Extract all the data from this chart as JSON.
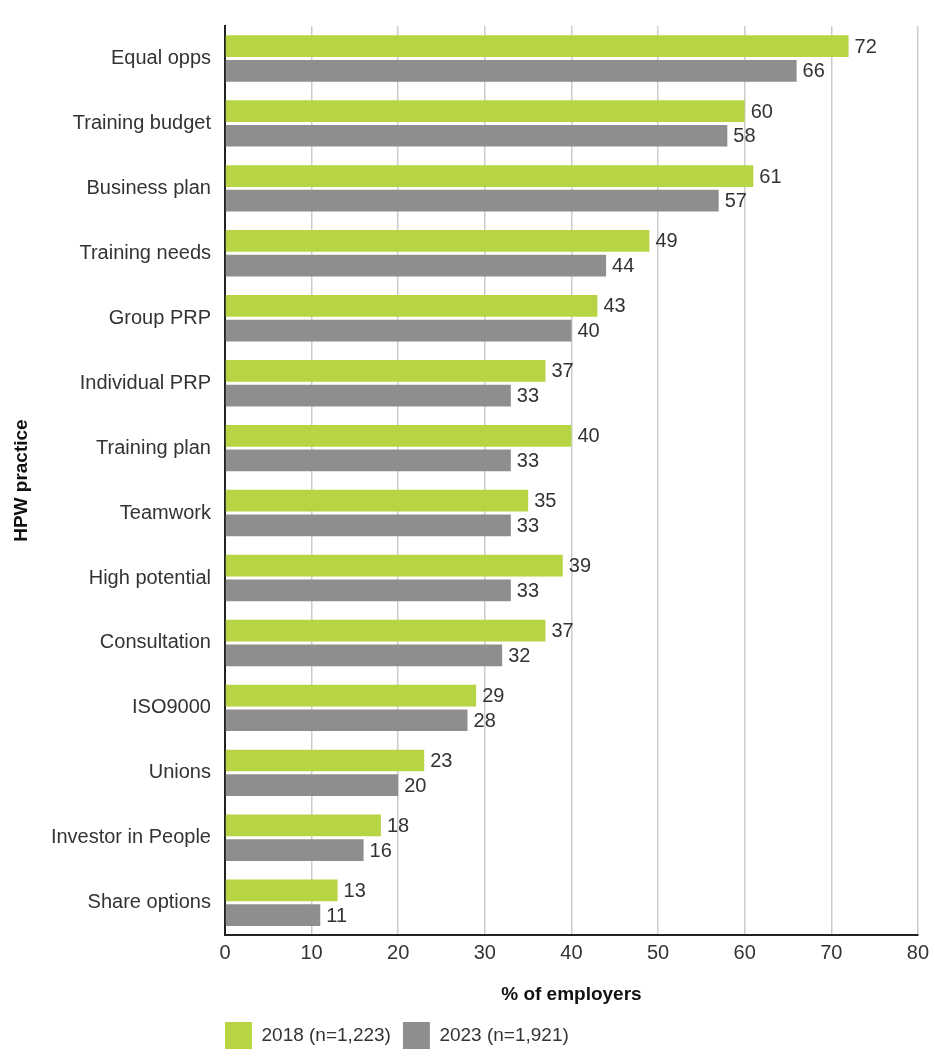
{
  "chart_data": {
    "type": "bar",
    "orientation": "horizontal",
    "xlabel": "% of employers",
    "ylabel": "HPW practice",
    "categories": [
      "Equal opps",
      "Training budget",
      "Business plan",
      "Training needs",
      "Group PRP",
      "Individual PRP",
      "Training plan",
      "Teamwork",
      "High potential",
      "Consultation",
      "ISO9000",
      "Unions",
      "Investor in People",
      "Share options"
    ],
    "series": [
      {
        "name": "2018 (n=1,223)",
        "color": "#b6d443",
        "values": [
          72,
          60,
          61,
          49,
          43,
          37,
          40,
          35,
          39,
          37,
          29,
          23,
          18,
          13
        ]
      },
      {
        "name": "2023 (n=1,921)",
        "color": "#8e8e8e",
        "values": [
          66,
          58,
          57,
          44,
          40,
          33,
          33,
          33,
          33,
          32,
          28,
          20,
          16,
          11
        ]
      }
    ],
    "xlim": [
      0,
      80
    ],
    "xticks": [
      0,
      10,
      20,
      30,
      40,
      50,
      60,
      70,
      80
    ],
    "grid": "x",
    "legend": "bottom left",
    "data_labels": true
  }
}
